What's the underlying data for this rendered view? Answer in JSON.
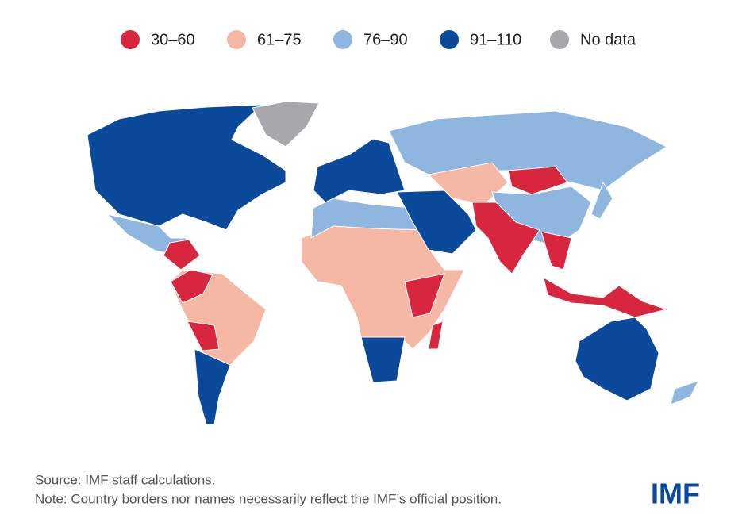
{
  "legend": [
    {
      "label": "30–60",
      "color": "#d7263d"
    },
    {
      "label": "61–75",
      "color": "#f4b8a4"
    },
    {
      "label": "76–90",
      "color": "#8fb6de"
    },
    {
      "label": "91–110",
      "color": "#0b4a9b"
    },
    {
      "label": "No data",
      "color": "#a6a8ab"
    }
  ],
  "footer": {
    "source": "Source: IMF staff calculations.",
    "note": "Note: Country borders nor names necessarily reflect the IMF’s official position.",
    "logo": "IMF"
  }
}
